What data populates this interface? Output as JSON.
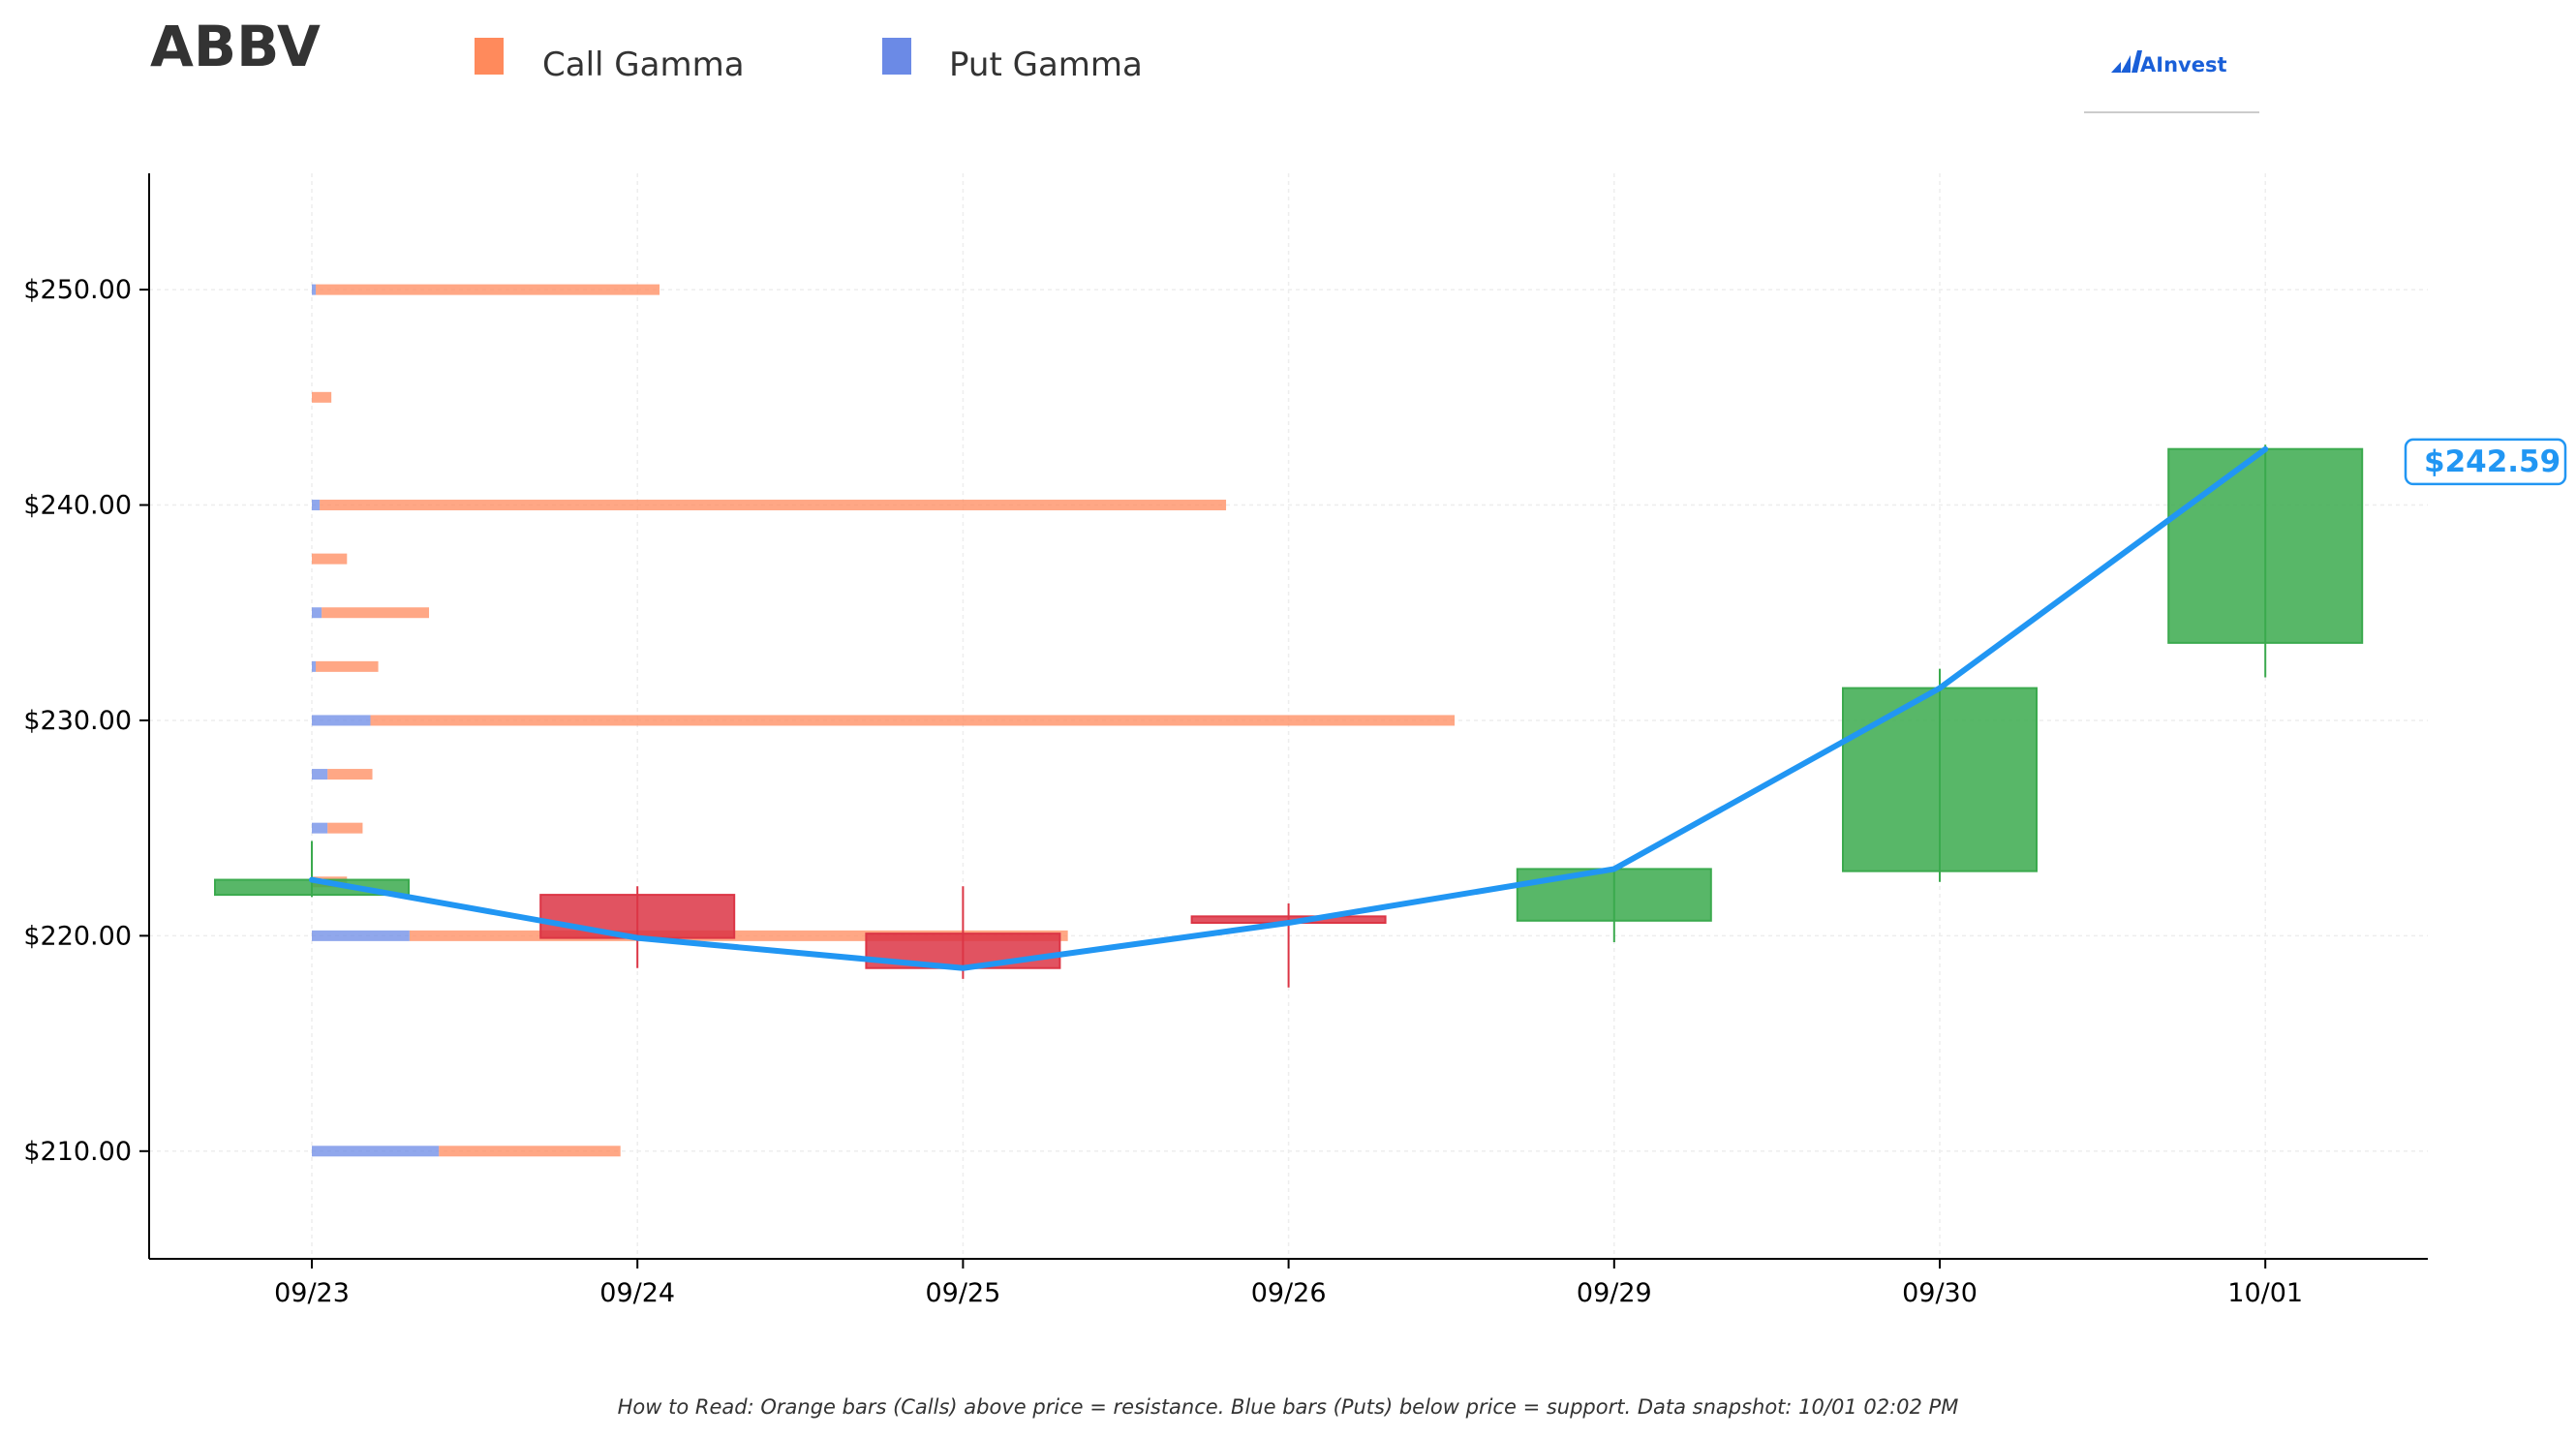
{
  "title": "ABBV",
  "legend": {
    "call_label": "Call Gamma",
    "put_label": "Put Gamma"
  },
  "brand": {
    "text": "AInvest"
  },
  "footer": "How to Read: Orange bars (Calls) above price = resistance. Blue bars (Puts) below price = support. Data snapshot: 10/01 02:02 PM",
  "colors": {
    "call": "#FF8A5C",
    "put": "#6B8AE6",
    "up": "#3BAA4E",
    "down": "#DC3545",
    "price_line": "#2196F3",
    "brand": "#1a5fd8"
  },
  "chart_data": {
    "type": "candlestick",
    "title": "ABBV",
    "dates": [
      "09/23",
      "09/24",
      "09/25",
      "09/26",
      "09/29",
      "09/30",
      "10/01"
    ],
    "ylim": [
      205.0,
      255.4
    ],
    "yticks": [
      210.0,
      220.0,
      230.0,
      240.0,
      250.0
    ],
    "ytick_labels": [
      "$210.00",
      "$220.00",
      "$230.00",
      "$240.00",
      "$250.00"
    ],
    "grid": true,
    "candles": [
      {
        "date": "09/23",
        "open": 221.9,
        "high": 224.4,
        "low": 221.8,
        "close": 222.6
      },
      {
        "date": "09/24",
        "open": 221.9,
        "high": 222.3,
        "low": 218.5,
        "close": 219.9
      },
      {
        "date": "09/25",
        "open": 220.1,
        "high": 222.3,
        "low": 218.0,
        "close": 218.5
      },
      {
        "date": "09/26",
        "open": 220.9,
        "high": 221.5,
        "low": 217.6,
        "close": 220.6
      },
      {
        "date": "09/29",
        "open": 220.7,
        "high": 223.2,
        "low": 219.7,
        "close": 223.1
      },
      {
        "date": "09/30",
        "open": 223.0,
        "high": 232.4,
        "low": 222.5,
        "close": 231.5
      },
      {
        "date": "10/01",
        "open": 233.6,
        "high": 242.8,
        "low": 232.0,
        "close": 242.6
      }
    ],
    "price_line": {
      "name": "Price",
      "x": [
        "09/23",
        "09/24",
        "09/25",
        "09/26",
        "09/29",
        "09/30",
        "10/01"
      ],
      "y": [
        222.6,
        219.9,
        218.5,
        220.6,
        223.1,
        231.5,
        242.59
      ]
    },
    "current_price_label": "$242.59",
    "gamma_bars": {
      "unit": "relative gamma exposure (fraction of x-axis span from 09/23)",
      "strikes": [
        210.0,
        220.0,
        222.5,
        225.0,
        227.5,
        230.0,
        232.5,
        235.0,
        237.5,
        240.0,
        245.0,
        250.0
      ],
      "put": [
        0.065,
        0.05,
        0.0,
        0.008,
        0.008,
        0.03,
        0.002,
        0.005,
        0.0,
        0.004,
        0.0,
        0.002
      ],
      "call": [
        0.093,
        0.337,
        0.018,
        0.018,
        0.023,
        0.555,
        0.032,
        0.055,
        0.018,
        0.464,
        0.01,
        0.176
      ]
    }
  }
}
